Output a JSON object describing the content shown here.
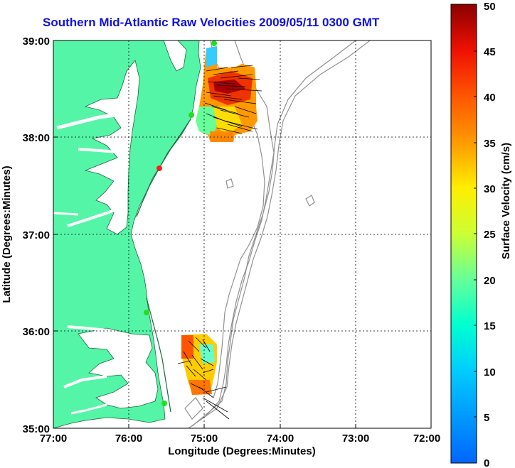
{
  "title": "Southern Mid-Atlantic Raw Velocities 2009/05/11 0300 GMT",
  "xlabel": "Longitude (Degrees:Minutes)",
  "ylabel": "Latitude (Degrees:Minutes)",
  "colorbar": {
    "label": "Surface Velocity (cm/s)",
    "min": 0,
    "max": 50,
    "ticks": [
      "0",
      "5",
      "10",
      "15",
      "20",
      "25",
      "30",
      "35",
      "40",
      "45",
      "50"
    ]
  },
  "x_ticks": [
    "77:00",
    "76:00",
    "75:00",
    "74:00",
    "73:00",
    "72:00"
  ],
  "y_ticks": [
    "39:00",
    "38:00",
    "37:00",
    "36:00",
    "35:00"
  ],
  "colors": {
    "land": "#55f5a8",
    "title": "#1010e0",
    "station": "#22dd22",
    "station_red": "#ee2222"
  }
}
